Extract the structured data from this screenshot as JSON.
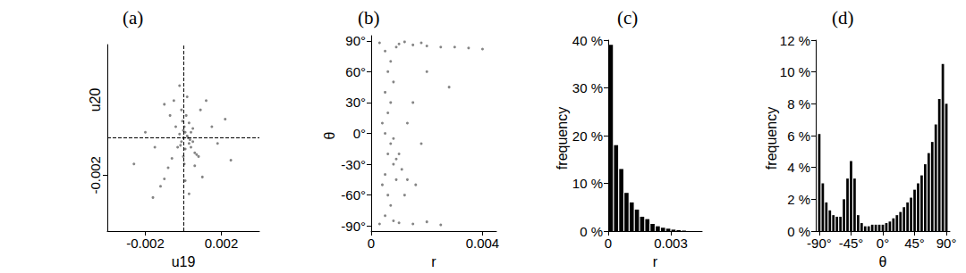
{
  "chart_data": [
    {
      "type": "scatter",
      "title": "(a)",
      "xlabel": "u19",
      "ylabel": "u20",
      "color": "#333333",
      "grid": false,
      "x": [
        0,
        0.0001,
        -0.0001,
        5e-05,
        -5e-05,
        0.0001,
        0,
        0.00015,
        -0.0001,
        5e-05,
        0.0002,
        -0.0002,
        0.0003,
        0.0004,
        0.0005,
        0.0006,
        0.0008,
        0.0007,
        0.0004,
        0.0005,
        0.0003,
        -0.0003,
        -0.0004,
        -0.0006,
        -0.0008,
        -0.001,
        -0.0012,
        -0.0007,
        -0.001,
        0.0009,
        0.0012,
        0.0015,
        0.0018,
        -0.0015,
        -0.002,
        0.0002,
        -0.0002,
        0.0001,
        0.0003,
        0.0022,
        -0.0016,
        0.0006,
        0.001,
        -0.0005,
        0.0025,
        -0.0026,
        0.00025,
        0.00035,
        -0.00015,
        0
      ],
      "y": [
        0,
        0.0003,
        -0.0002,
        0.0006,
        0.0009,
        -0.0006,
        -0.001,
        0.0012,
        0.0015,
        -0.0014,
        0.0001,
        0.0002,
        -0.0003,
        -0.0005,
        -0.0002,
        -0.0008,
        -0.001,
        -0.0009,
        0.0003,
        0.0005,
        0.0008,
        -0.0005,
        0.0006,
        -0.0011,
        -0.0016,
        -0.0022,
        -0.0026,
        0.0012,
        0.0018,
        0.0015,
        0.002,
        0.0006,
        -0.0003,
        -0.0005,
        0.0003,
        0.0022,
        0.0028,
        -0.0023,
        -0.003,
        0.001,
        -0.0032,
        -0.0015,
        -0.0021,
        0.002,
        -0.0012,
        -0.0014,
        0,
        -0.0001,
        -0.0004,
        0.0004
      ],
      "xlim": [
        -0.004,
        0.004
      ],
      "ylim": [
        -0.005,
        0.005
      ],
      "xticks": [
        -0.002,
        0.002
      ],
      "yticks": [
        -0.002
      ],
      "reference_lines": [
        {
          "axis": "x",
          "value": 0
        },
        {
          "axis": "y",
          "value": 0
        }
      ],
      "line_style": "dashed"
    },
    {
      "type": "scatter",
      "title": "(b)",
      "xlabel": "r",
      "ylabel": "θ",
      "color": "#333333",
      "grid": false,
      "x": [
        0.0005,
        0.0006,
        0.0005,
        0.0006,
        0.0005,
        0.0006,
        0.0005,
        0.0006,
        0.0005,
        0.0007,
        0.0008,
        0.0007,
        0.0004,
        0.0007,
        0.0008,
        0.0004,
        0.0007,
        0.0003,
        0.0003,
        0.001,
        0.0015,
        0.002,
        0.0025,
        0.003,
        0.0035,
        0.004,
        0.0012,
        0.0009,
        0.0018,
        0.001,
        0.0015,
        0.002,
        0.0008,
        0.0025,
        0.001,
        0.0011,
        0.0013,
        0.0016,
        0.0012,
        0.0009,
        0.0008,
        0.0009,
        0.0015,
        0.002,
        0.0018,
        0.0028,
        0.0013
      ],
      "y": [
        80,
        60,
        40,
        20,
        0,
        -20,
        -40,
        -60,
        -80,
        70,
        50,
        30,
        10,
        -10,
        -30,
        -50,
        -70,
        88,
        -88,
        87,
        86,
        85,
        84,
        84,
        83,
        82,
        89,
        84,
        88,
        -87,
        -88,
        -86,
        -85,
        -89,
        -20,
        -35,
        -45,
        -50,
        -60,
        -45,
        -5,
        -25,
        30,
        60,
        -10,
        45,
        10
      ],
      "xlim": [
        0,
        0.0045
      ],
      "ylim": [
        -95,
        95
      ],
      "xticks": [
        0,
        0.004
      ],
      "yticks": [
        {
          "value": -90,
          "label": "-90°"
        },
        {
          "value": -60,
          "label": "-60°"
        },
        {
          "value": -30,
          "label": "-30°"
        },
        {
          "value": 0,
          "label": "0°"
        },
        {
          "value": 30,
          "label": "30°"
        },
        {
          "value": 60,
          "label": "60°"
        },
        {
          "value": 90,
          "label": "90°"
        }
      ]
    },
    {
      "type": "histogram",
      "title": "(c)",
      "xlabel": "r",
      "ylabel": "frequency",
      "color": "#000000",
      "grid": false,
      "bins": [
        0,
        0.00025,
        0.0005,
        0.00075,
        0.001,
        0.00125,
        0.0015,
        0.00175,
        0.002,
        0.00225,
        0.0025,
        0.00275,
        0.003,
        0.00325,
        0.0035,
        0.00375
      ],
      "values": [
        39,
        18,
        13,
        8,
        6,
        4.5,
        3,
        2.5,
        1.5,
        1,
        0.7,
        0.5,
        0.3,
        0.2,
        0.1
      ],
      "xlim": [
        0,
        0.0045
      ],
      "ylim": [
        0,
        40
      ],
      "xticks": [
        0,
        0.003
      ],
      "yticks": [
        {
          "value": 0,
          "label": "0 %"
        },
        {
          "value": 10,
          "label": "10 %"
        },
        {
          "value": 20,
          "label": "20 %"
        },
        {
          "value": 30,
          "label": "30 %"
        },
        {
          "value": 40,
          "label": "40 %"
        }
      ]
    },
    {
      "type": "histogram",
      "title": "(d)",
      "xlabel": "θ",
      "ylabel": "frequency",
      "color": "#000000",
      "grid": false,
      "bins": [
        -92.5,
        -87.5,
        -82.5,
        -77.5,
        -72.5,
        -67.5,
        -62.5,
        -57.5,
        -52.5,
        -47.5,
        -42.5,
        -37.5,
        -32.5,
        -27.5,
        -22.5,
        -17.5,
        -12.5,
        -7.5,
        -2.5,
        2.5,
        7.5,
        12.5,
        17.5,
        22.5,
        27.5,
        32.5,
        37.5,
        42.5,
        47.5,
        52.5,
        57.5,
        62.5,
        67.5,
        72.5,
        77.5,
        82.5,
        87.5,
        92.5
      ],
      "values": [
        6.1,
        3.0,
        1.8,
        1.3,
        1.0,
        0.9,
        0.9,
        2.0,
        3.3,
        4.4,
        3.3,
        1.0,
        0.5,
        0.3,
        0.3,
        0.4,
        0.4,
        0.4,
        0.4,
        0.5,
        0.6,
        0.8,
        1.0,
        1.2,
        1.5,
        1.8,
        2.1,
        2.6,
        3.0,
        3.5,
        4.2,
        4.9,
        5.6,
        6.7,
        8.3,
        10.5,
        8.0
      ],
      "xlim": [
        -95,
        95
      ],
      "ylim": [
        0,
        12
      ],
      "xticks": [
        {
          "value": -90,
          "label": "-90°"
        },
        {
          "value": -45,
          "label": "-45°"
        },
        {
          "value": 0,
          "label": "0°"
        },
        {
          "value": 45,
          "label": "45°"
        },
        {
          "value": 90,
          "label": "90°"
        }
      ],
      "yticks": [
        {
          "value": 0,
          "label": "0 %"
        },
        {
          "value": 2,
          "label": "2 %"
        },
        {
          "value": 4,
          "label": "4 %"
        },
        {
          "value": 6,
          "label": "6 %"
        },
        {
          "value": 8,
          "label": "8 %"
        },
        {
          "value": 10,
          "label": "10 %"
        },
        {
          "value": 12,
          "label": "12 %"
        }
      ]
    }
  ]
}
